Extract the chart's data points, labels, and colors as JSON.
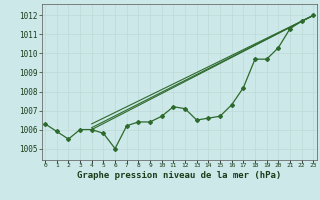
{
  "xlabel": "Graphe pression niveau de la mer (hPa)",
  "bg_color": "#cce8e8",
  "line_color": "#2d6a2d",
  "x_ticks": [
    0,
    1,
    2,
    3,
    4,
    5,
    6,
    7,
    8,
    9,
    10,
    11,
    12,
    13,
    14,
    15,
    16,
    17,
    18,
    19,
    20,
    21,
    22,
    23
  ],
  "y_ticks": [
    1005,
    1006,
    1007,
    1008,
    1009,
    1010,
    1011,
    1012
  ],
  "ylim": [
    1004.4,
    1012.6
  ],
  "xlim": [
    -0.3,
    23.3
  ],
  "main_series": [
    1006.3,
    1005.9,
    1005.5,
    1006.0,
    1006.0,
    1005.8,
    1005.0,
    1006.2,
    1006.4,
    1006.4,
    1006.7,
    1007.2,
    1007.1,
    1006.5,
    1006.6,
    1006.7,
    1007.3,
    1008.2,
    1009.7,
    1009.7,
    1010.3,
    1011.3,
    1011.7,
    1012.0
  ],
  "straight_lines": [
    {
      "x0": 4,
      "y0": 1006.0,
      "x1": 23,
      "y1": 1012.0
    },
    {
      "x0": 4,
      "y0": 1006.0,
      "x1": 23,
      "y1": 1012.0
    },
    {
      "x0": 4,
      "y0": 1006.0,
      "x1": 23,
      "y1": 1012.0
    }
  ],
  "straight_offsets": [
    0.0,
    0.3,
    0.6
  ]
}
